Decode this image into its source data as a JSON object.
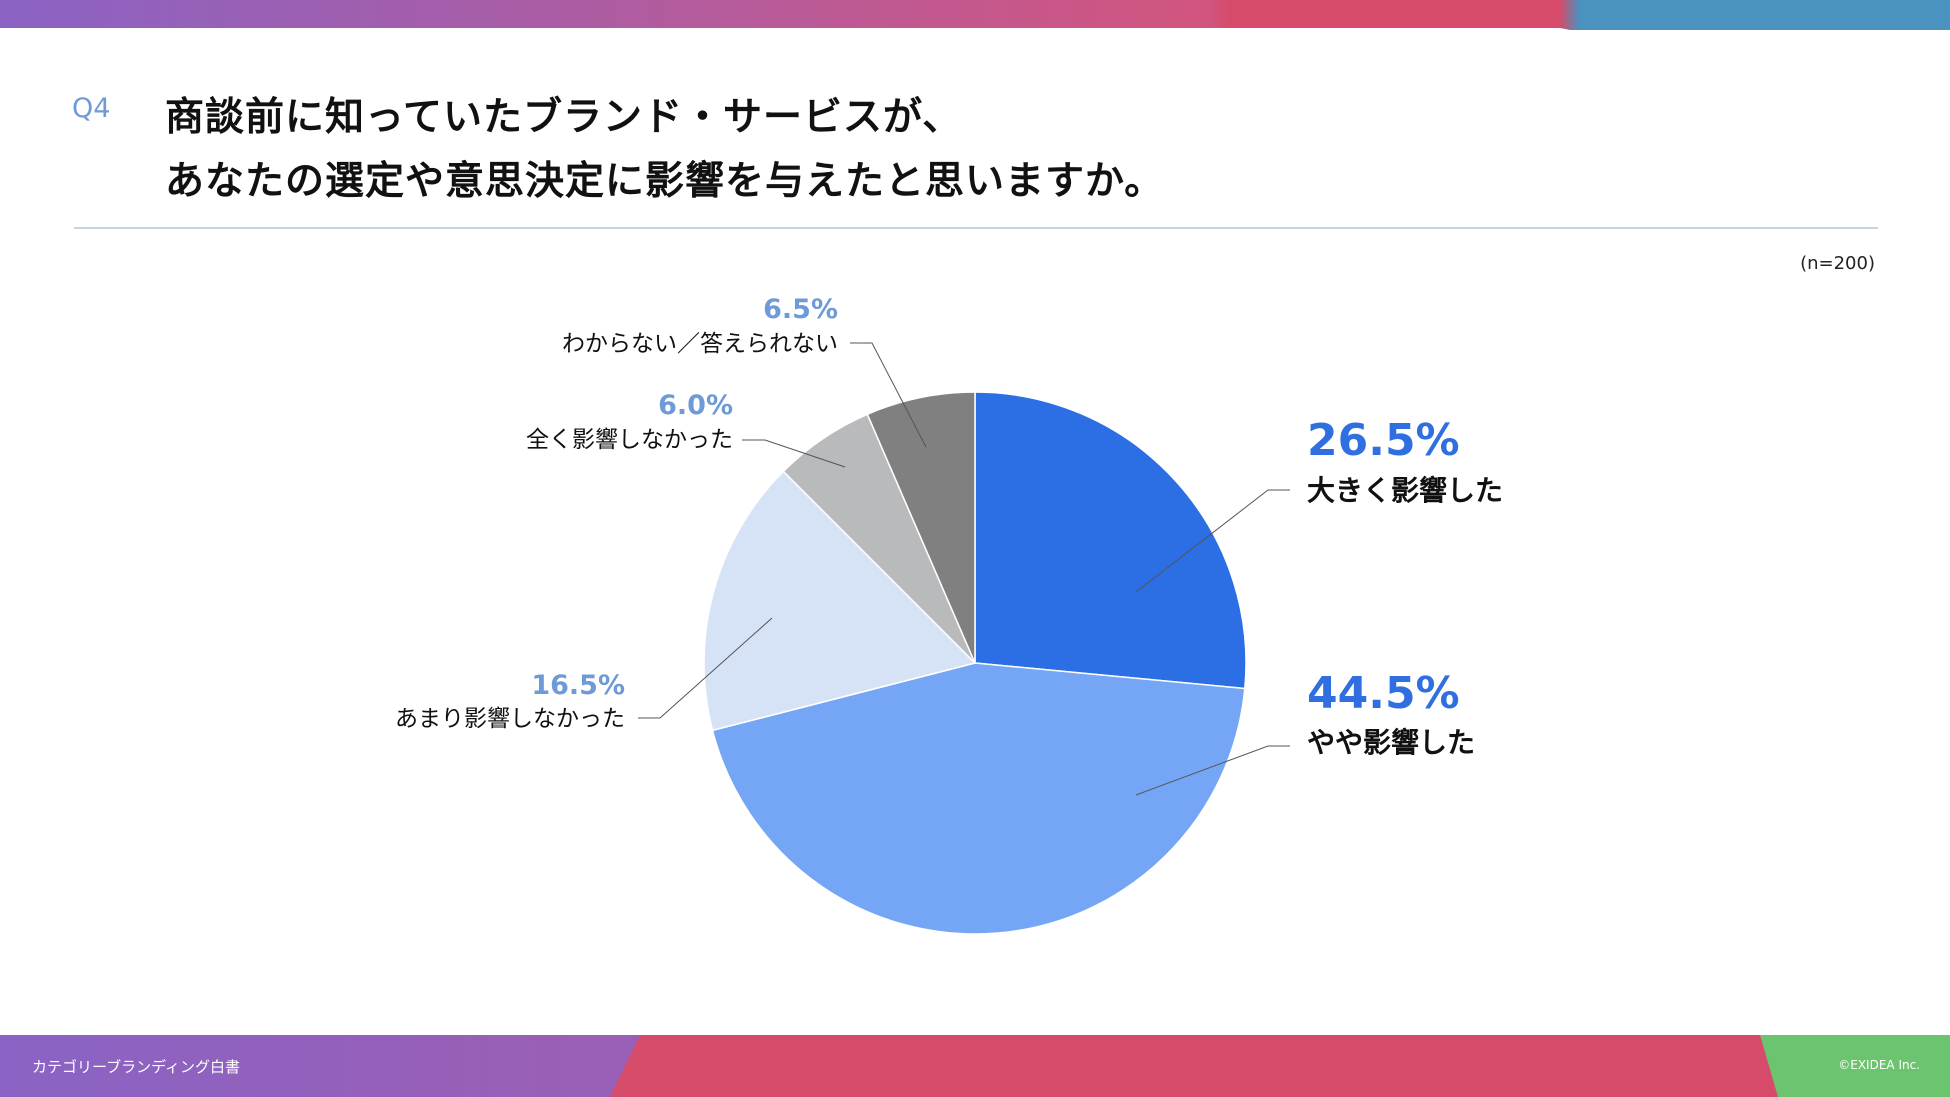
{
  "question": {
    "number": "Q4",
    "title_line1": "商談前に知っていたブランド・サービスが、",
    "title_line2": "あなたの選定や意思決定に影響を与えたと思いますか。"
  },
  "sample_size": "(n=200)",
  "footer": {
    "left": "カテゴリーブランディング白書",
    "right": "©EXIDEA Inc."
  },
  "colors": {
    "accent_text": "#2f6fe0",
    "minor_pct_text": "#6f9ad8",
    "band_purple": "#8a63c4",
    "band_pink": "#d64b6a",
    "band_blue": "#4a92c0",
    "band_green": "#6cc46e"
  },
  "chart_data": {
    "type": "pie",
    "start": "12 o'clock",
    "direction": "clockwise",
    "slices": [
      {
        "label": "大きく影響した",
        "value": 26.5,
        "pct_label": "26.5%",
        "color": "#2c6ee3"
      },
      {
        "label": "やや影響した",
        "value": 44.5,
        "pct_label": "44.5%",
        "color": "#75a6f5"
      },
      {
        "label": "あまり影響しなかった",
        "value": 16.5,
        "pct_label": "16.5%",
        "color": "#d6e3f7"
      },
      {
        "label": "全く影響しなかった",
        "value": 6.0,
        "pct_label": "6.0%",
        "color": "#b9babc"
      },
      {
        "label": "わからない／答えられない",
        "value": 6.5,
        "pct_label": "6.5%",
        "color": "#808080"
      }
    ]
  }
}
